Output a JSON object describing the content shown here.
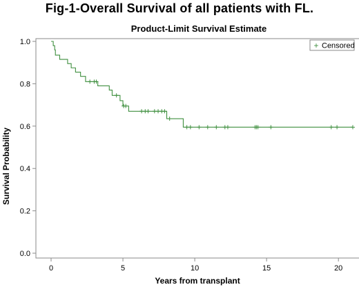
{
  "figure_title": "Fig-1-Overall Survival of all patients with FL.",
  "chart_data": {
    "type": "line",
    "title": "Product-Limit Survival Estimate",
    "xlabel": "Years from transplant",
    "ylabel": "Survival Probability",
    "xlim": [
      0,
      21
    ],
    "ylim": [
      0,
      1.0
    ],
    "x_ticks": [
      0,
      5,
      10,
      15,
      20
    ],
    "x_tick_labels": [
      "0",
      "5",
      "10",
      "15",
      "20"
    ],
    "y_ticks": [
      0.0,
      0.2,
      0.4,
      0.6,
      0.8,
      1.0
    ],
    "y_tick_labels": [
      "0.0",
      "0.2",
      "0.4",
      "0.6",
      "0.8",
      "1.0"
    ],
    "grid": false,
    "legend_position": "top-right",
    "legend": [
      {
        "label": "Censored",
        "marker": "+"
      }
    ],
    "colors": {
      "curve": "#3f8f3f",
      "frame": "#8a8a8a"
    },
    "series": [
      {
        "step": [
          {
            "x": 0,
            "y": 1.0
          },
          {
            "x": 0.15,
            "y": 0.98
          },
          {
            "x": 0.25,
            "y": 0.96
          },
          {
            "x": 0.3,
            "y": 0.935
          },
          {
            "x": 0.6,
            "y": 0.915
          },
          {
            "x": 1.15,
            "y": 0.895
          },
          {
            "x": 1.4,
            "y": 0.875
          },
          {
            "x": 1.7,
            "y": 0.855
          },
          {
            "x": 2.05,
            "y": 0.835
          },
          {
            "x": 2.4,
            "y": 0.81
          },
          {
            "x": 3.25,
            "y": 0.79
          },
          {
            "x": 4.05,
            "y": 0.77
          },
          {
            "x": 4.25,
            "y": 0.745
          },
          {
            "x": 4.8,
            "y": 0.72
          },
          {
            "x": 5.0,
            "y": 0.695
          },
          {
            "x": 5.4,
            "y": 0.67
          },
          {
            "x": 8.05,
            "y": 0.635
          },
          {
            "x": 9.2,
            "y": 0.595
          }
        ],
        "end_x": 21,
        "censored": [
          {
            "x": 2.7,
            "y": 0.81
          },
          {
            "x": 3.0,
            "y": 0.81
          },
          {
            "x": 3.15,
            "y": 0.81
          },
          {
            "x": 4.55,
            "y": 0.745
          },
          {
            "x": 5.05,
            "y": 0.695
          },
          {
            "x": 5.2,
            "y": 0.695
          },
          {
            "x": 6.3,
            "y": 0.67
          },
          {
            "x": 6.55,
            "y": 0.67
          },
          {
            "x": 6.75,
            "y": 0.67
          },
          {
            "x": 7.2,
            "y": 0.67
          },
          {
            "x": 7.45,
            "y": 0.67
          },
          {
            "x": 7.7,
            "y": 0.67
          },
          {
            "x": 7.9,
            "y": 0.67
          },
          {
            "x": 8.25,
            "y": 0.635
          },
          {
            "x": 9.45,
            "y": 0.595
          },
          {
            "x": 9.7,
            "y": 0.595
          },
          {
            "x": 10.3,
            "y": 0.595
          },
          {
            "x": 10.9,
            "y": 0.595
          },
          {
            "x": 11.5,
            "y": 0.595
          },
          {
            "x": 12.1,
            "y": 0.595
          },
          {
            "x": 12.3,
            "y": 0.595
          },
          {
            "x": 14.2,
            "y": 0.595
          },
          {
            "x": 14.3,
            "y": 0.595
          },
          {
            "x": 14.4,
            "y": 0.595
          },
          {
            "x": 15.3,
            "y": 0.595
          },
          {
            "x": 19.5,
            "y": 0.595
          },
          {
            "x": 19.9,
            "y": 0.595
          },
          {
            "x": 21.0,
            "y": 0.595
          }
        ]
      }
    ]
  }
}
